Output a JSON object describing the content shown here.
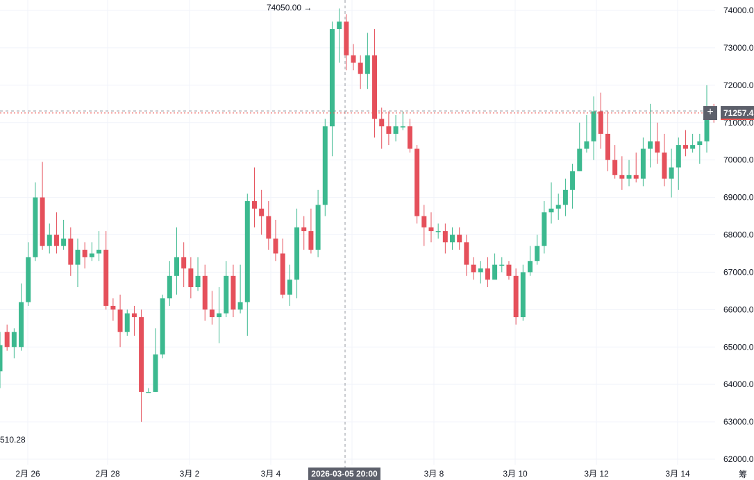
{
  "colors": {
    "up": "#26a69a",
    "up_fill": "#3cb98f",
    "down": "#ef5350",
    "down_fill": "#e5505b",
    "grid": "#f0f3fa",
    "crosshair": "#9598a1",
    "price_line": "#ef5350"
  },
  "chart": {
    "max_label": "74050.00 →",
    "min_label": "510.28",
    "crosshair_time": "2026-03-05 20:00",
    "current_price": "71257.4",
    "plus_icon": "+",
    "scale_mode": "筹"
  },
  "chart_data": {
    "type": "candlestick",
    "title": "",
    "y_ticks": [
      "74000.0",
      "73000.0",
      "72000.0",
      "71000.0",
      "70000.0",
      "69000.0",
      "68000.0",
      "67000.0",
      "66000.0",
      "65000.0",
      "64000.0",
      "63000.0",
      "62000.0"
    ],
    "x_ticks": [
      "2月 26",
      "2月 28",
      "3月 2",
      "3月 4",
      "3月 6",
      "3月 8",
      "3月 10",
      "3月 12",
      "3月 14"
    ],
    "ylim": [
      61950,
      74250
    ],
    "current_price": 71257.4,
    "max_price": 74050.0,
    "candles": [
      [
        64350,
        65050,
        63900,
        65400
      ],
      [
        65400,
        65000,
        64900,
        65600
      ],
      [
        65000,
        65400,
        64700,
        65500
      ],
      [
        65000,
        66200,
        64900,
        66700
      ],
      [
        66200,
        67400,
        66100,
        67800
      ],
      [
        67400,
        69000,
        67300,
        69400
      ],
      [
        69000,
        67700,
        67600,
        69950
      ],
      [
        67700,
        68000,
        67500,
        68300
      ],
      [
        68000,
        67700,
        67500,
        68600
      ],
      [
        67700,
        67900,
        67600,
        68400
      ],
      [
        67900,
        67200,
        66900,
        68200
      ],
      [
        67200,
        67600,
        66600,
        67900
      ],
      [
        67600,
        67400,
        67100,
        67800
      ],
      [
        67400,
        67500,
        67300,
        67800
      ],
      [
        67500,
        67600,
        67300,
        68100
      ],
      [
        67600,
        66100,
        66000,
        68100
      ],
      [
        66100,
        66000,
        65700,
        66300
      ],
      [
        66000,
        65400,
        65000,
        66400
      ],
      [
        65400,
        65900,
        65300,
        66000
      ],
      [
        65900,
        65800,
        65300,
        66100
      ],
      [
        65800,
        63800,
        63000,
        66000
      ],
      [
        63800,
        63800,
        63800,
        63900
      ],
      [
        63800,
        64800,
        63800,
        65500
      ],
      [
        64800,
        66300,
        64700,
        66400
      ],
      [
        66300,
        66900,
        66100,
        67300
      ],
      [
        66900,
        67400,
        66400,
        68200
      ],
      [
        67400,
        67100,
        66600,
        67800
      ],
      [
        67100,
        66600,
        66300,
        67400
      ],
      [
        66600,
        66900,
        66500,
        67400
      ],
      [
        66900,
        66000,
        65700,
        67200
      ],
      [
        66000,
        65800,
        65600,
        66500
      ],
      [
        65800,
        65900,
        65100,
        66600
      ],
      [
        65900,
        66900,
        65800,
        67300
      ],
      [
        66900,
        66000,
        65800,
        67200
      ],
      [
        66000,
        66200,
        65900,
        67200
      ],
      [
        66200,
        68900,
        65300,
        69100
      ],
      [
        68900,
        68700,
        68200,
        69800
      ],
      [
        68700,
        68500,
        68000,
        69200
      ],
      [
        68500,
        67900,
        67600,
        68900
      ],
      [
        67900,
        67500,
        67300,
        68400
      ],
      [
        67500,
        66400,
        66300,
        67900
      ],
      [
        66400,
        66800,
        66100,
        67200
      ],
      [
        66800,
        68200,
        66300,
        68700
      ],
      [
        68200,
        68100,
        67600,
        68500
      ],
      [
        68100,
        67600,
        67500,
        68700
      ],
      [
        67600,
        68800,
        67400,
        69200
      ],
      [
        68800,
        70900,
        68500,
        71100
      ],
      [
        70900,
        73500,
        70100,
        73700
      ],
      [
        73500,
        73700,
        72600,
        74050
      ],
      [
        73700,
        72800,
        72400,
        73900
      ],
      [
        72800,
        72600,
        72400,
        73100
      ],
      [
        72600,
        72300,
        71900,
        72800
      ],
      [
        72300,
        72800,
        71900,
        73400
      ],
      [
        72800,
        71100,
        70600,
        73500
      ],
      [
        71100,
        70900,
        70300,
        71400
      ],
      [
        70900,
        70700,
        70400,
        71300
      ],
      [
        70700,
        70900,
        70500,
        71200
      ],
      [
        70900,
        70900,
        70800,
        71300
      ],
      [
        70900,
        70300,
        70200,
        71100
      ],
      [
        70300,
        68500,
        68300,
        70400
      ],
      [
        68500,
        68200,
        67700,
        68800
      ],
      [
        68200,
        68100,
        67800,
        68600
      ],
      [
        68100,
        68100,
        67900,
        68300
      ],
      [
        68100,
        67800,
        67500,
        68300
      ],
      [
        67800,
        68000,
        67600,
        68200
      ],
      [
        68000,
        67800,
        67600,
        68200
      ],
      [
        67800,
        67200,
        66900,
        68000
      ],
      [
        67200,
        67000,
        66800,
        67400
      ],
      [
        67000,
        67100,
        66700,
        67300
      ],
      [
        67100,
        66800,
        66600,
        67400
      ],
      [
        66800,
        67200,
        66900,
        67500
      ],
      [
        67200,
        67200,
        67000,
        67400
      ],
      [
        67200,
        66900,
        66800,
        67300
      ],
      [
        66900,
        65800,
        65600,
        67100
      ],
      [
        65800,
        67000,
        65700,
        67200
      ],
      [
        67000,
        67300,
        66900,
        67700
      ],
      [
        67300,
        67700,
        67200,
        68000
      ],
      [
        67700,
        68600,
        67500,
        68900
      ],
      [
        68600,
        68700,
        68300,
        69400
      ],
      [
        68700,
        68800,
        68400,
        69100
      ],
      [
        68800,
        69200,
        68500,
        69500
      ],
      [
        69200,
        69700,
        68700,
        69900
      ],
      [
        69700,
        70300,
        69700,
        71000
      ],
      [
        70300,
        70500,
        70200,
        71200
      ],
      [
        70500,
        71300,
        70000,
        71700
      ],
      [
        71300,
        70700,
        70300,
        71800
      ],
      [
        70700,
        70000,
        69700,
        71300
      ],
      [
        70000,
        69600,
        69500,
        70400
      ],
      [
        69600,
        69500,
        69200,
        70100
      ],
      [
        69500,
        69600,
        69300,
        70000
      ],
      [
        69600,
        69500,
        69400,
        70200
      ],
      [
        69500,
        70300,
        69300,
        70600
      ],
      [
        70300,
        70500,
        69800,
        71500
      ],
      [
        70500,
        70200,
        69900,
        71000
      ],
      [
        70200,
        69500,
        69300,
        70700
      ],
      [
        69500,
        69800,
        69000,
        70300
      ],
      [
        69800,
        70400,
        69200,
        70600
      ],
      [
        70400,
        70300,
        70100,
        70800
      ],
      [
        70300,
        70400,
        70200,
        70700
      ],
      [
        70400,
        70500,
        69900,
        70700
      ],
      [
        70500,
        71300,
        70200,
        72000
      ],
      [
        71300,
        71200,
        71000,
        71500
      ]
    ]
  }
}
